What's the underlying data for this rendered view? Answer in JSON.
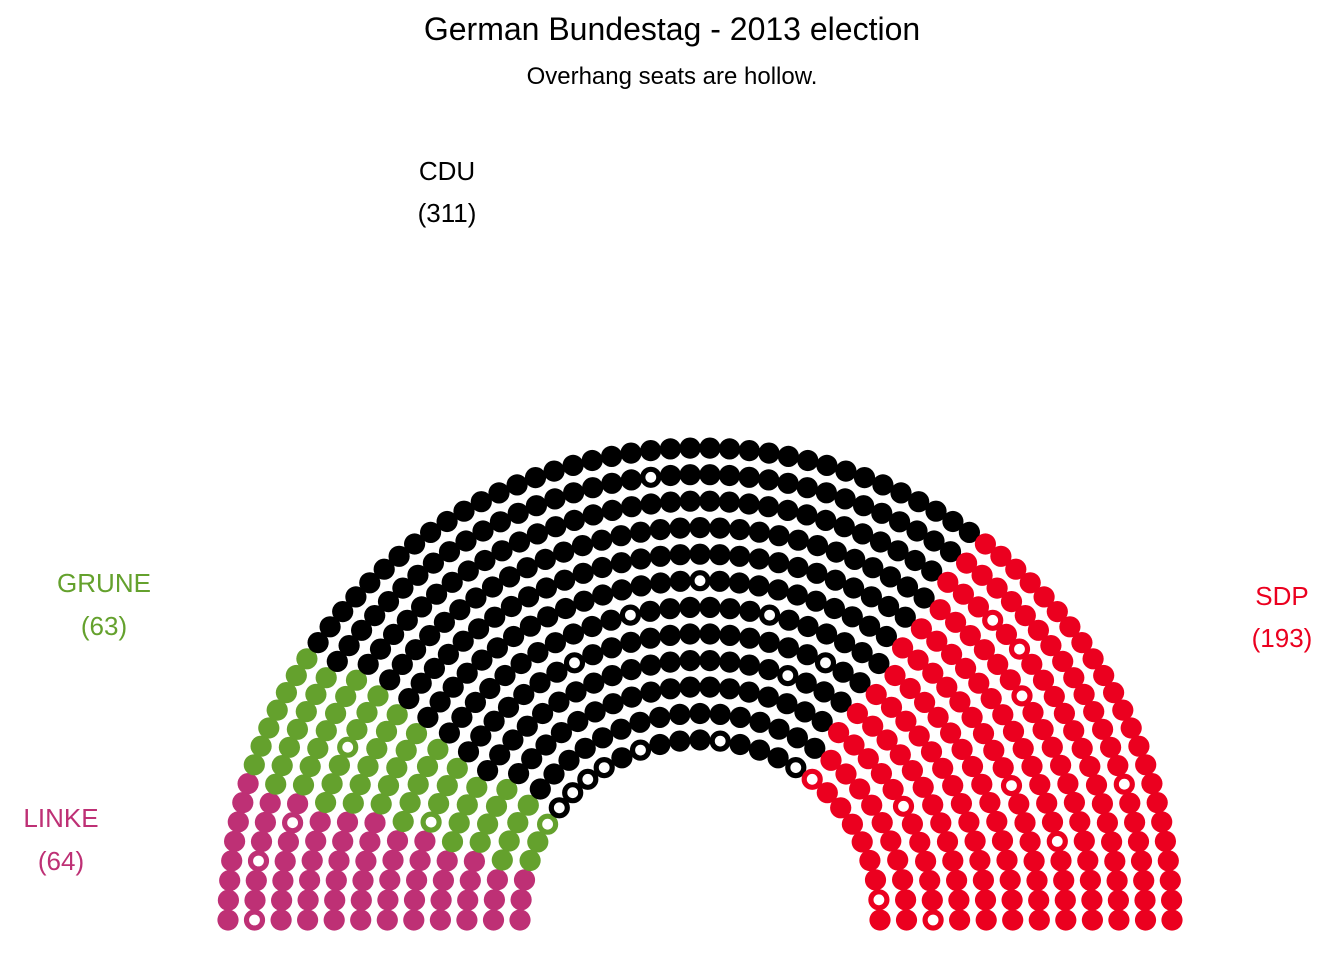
{
  "chart_data": {
    "type": "parliament",
    "title": "German Bundestag - 2013 election",
    "subtitle": "Overhang seats are hollow.",
    "total_seats": 631,
    "seat_order": "left-to-right",
    "parties": [
      {
        "name": "LINKE",
        "count_label": "(64)",
        "seats": 64,
        "overhang_seats": 3,
        "color": "#BE3075"
      },
      {
        "name": "GRUNE",
        "count_label": "(63)",
        "seats": 63,
        "overhang_seats": 3,
        "color": "#64A12D"
      },
      {
        "name": "CDU",
        "count_label": "(311)",
        "seats": 311,
        "overhang_seats": 14,
        "color": "#000000"
      },
      {
        "name": "SDP",
        "count_label": "(193)",
        "seats": 193,
        "overhang_seats": 10,
        "color": "#EB001F"
      }
    ]
  }
}
